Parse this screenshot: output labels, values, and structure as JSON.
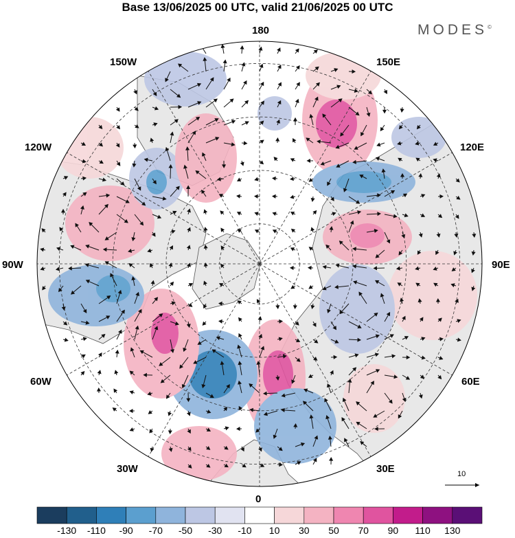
{
  "title": "Base 13/06/2025 00 UTC, valid 21/06/2025 00 UTC",
  "brand": "MODES",
  "brand_mark": "©",
  "map": {
    "projection": "north polar stereographic",
    "longitude_labels": {
      "top": "180",
      "upper_right": "150E",
      "right_upper": "120E",
      "right": "90E",
      "right_lower": "60E",
      "lower_right": "30E",
      "bottom": "0",
      "lower_left": "30W",
      "left_lower": "60W",
      "left": "90W",
      "left_upper": "120W",
      "upper_left": "150W"
    },
    "land_color": "#e8e8e8",
    "grid": "dashed"
  },
  "reference_vector": {
    "label": "10"
  },
  "colorbar": {
    "levels": [
      "-130",
      "-110",
      "-90",
      "-70",
      "-50",
      "-30",
      "-10",
      "10",
      "30",
      "50",
      "70",
      "90",
      "110",
      "130"
    ],
    "colors": [
      "#1b3d5e",
      "#215f8c",
      "#2f7fb8",
      "#5b9fcf",
      "#8fb4dc",
      "#bdc7e4",
      "#e1e3f1",
      "#ffffff",
      "#f6d7d9",
      "#f4b3c2",
      "#ef86b0",
      "#e0549f",
      "#c21c8b",
      "#8e1180",
      "#5a0f76"
    ]
  }
}
